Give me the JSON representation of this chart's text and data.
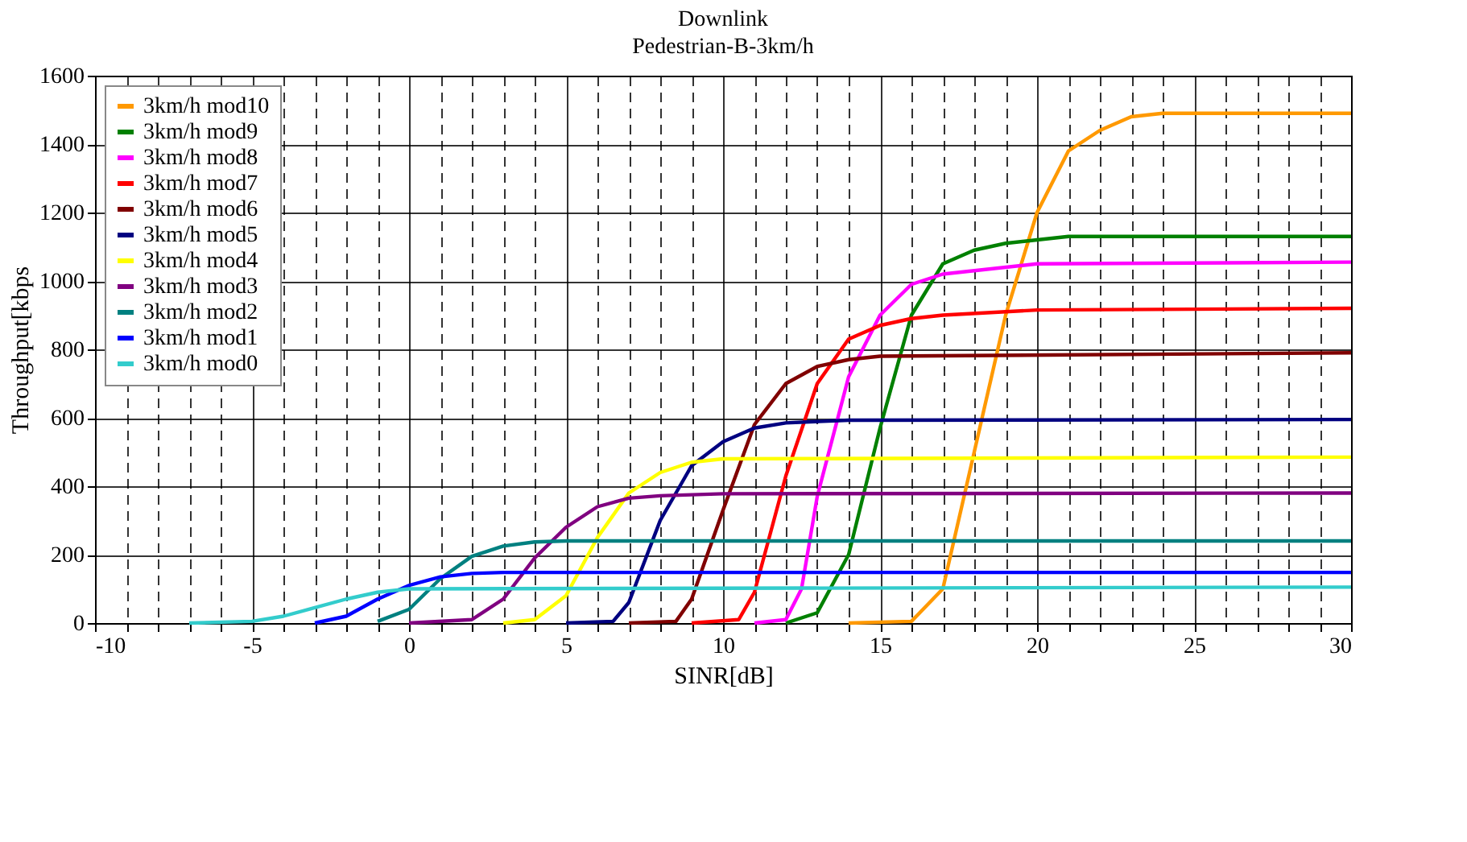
{
  "chart_data": {
    "type": "line",
    "title": "Downlink",
    "subtitle": "Pedestrian-B-3km/h",
    "xlabel": "SINR[dB]",
    "ylabel": "Throughput[kbps",
    "xlim": [
      -10,
      30
    ],
    "ylim": [
      0,
      1600
    ],
    "xticks": [
      -10,
      {
        "value": -9,
        "label": null
      },
      {
        "value": -8,
        "label": null
      },
      {
        "value": -7,
        "label": null
      },
      {
        "value": -6,
        "label": null
      },
      -5,
      {
        "value": -4,
        "label": null
      },
      {
        "value": -3,
        "label": null
      },
      {
        "value": -2,
        "label": null
      },
      {
        "value": -1,
        "label": null
      },
      0,
      {
        "value": 1,
        "label": null
      },
      {
        "value": 2,
        "label": null
      },
      {
        "value": 3,
        "label": null
      },
      {
        "value": 4,
        "label": null
      },
      5,
      {
        "value": 6,
        "label": null
      },
      {
        "value": 7,
        "label": null
      },
      {
        "value": 8,
        "label": null
      },
      {
        "value": 9,
        "label": null
      },
      10,
      {
        "value": 11,
        "label": null
      },
      {
        "value": 12,
        "label": null
      },
      {
        "value": 13,
        "label": null
      },
      {
        "value": 14,
        "label": null
      },
      15,
      {
        "value": 16,
        "label": null
      },
      {
        "value": 17,
        "label": null
      },
      {
        "value": 18,
        "label": null
      },
      {
        "value": 19,
        "label": null
      },
      20,
      {
        "value": 21,
        "label": null
      },
      {
        "value": 22,
        "label": null
      },
      {
        "value": 23,
        "label": null
      },
      {
        "value": 24,
        "label": null
      },
      25,
      {
        "value": 26,
        "label": null
      },
      {
        "value": 27,
        "label": null
      },
      {
        "value": 28,
        "label": null
      },
      {
        "value": 29,
        "label": null
      },
      30
    ],
    "yticks": [
      0,
      200,
      400,
      600,
      800,
      1000,
      1200,
      1400,
      1600
    ],
    "grid": true,
    "legend": "top left",
    "marker": "none",
    "line_style": "solid",
    "series": [
      {
        "name": "3km/h mod10",
        "color": "#ff9900",
        "x": [
          14,
          16,
          17,
          18,
          19,
          20,
          21,
          22,
          23,
          24,
          25,
          30
        ],
        "values": [
          0,
          5,
          100,
          500,
          900,
          1200,
          1380,
          1440,
          1480,
          1490,
          1490,
          1490
        ]
      },
      {
        "name": "3km/h mod9",
        "color": "#008000",
        "x": [
          12,
          13,
          14,
          15,
          16,
          17,
          18,
          19,
          20,
          21,
          30
        ],
        "values": [
          0,
          30,
          200,
          570,
          900,
          1050,
          1090,
          1110,
          1120,
          1130,
          1130
        ]
      },
      {
        "name": "3km/h mod8",
        "color": "#ff00ff",
        "x": [
          11,
          12,
          12.5,
          13,
          14,
          15,
          16,
          17,
          20,
          30
        ],
        "values": [
          0,
          10,
          100,
          370,
          720,
          900,
          990,
          1020,
          1050,
          1055
        ]
      },
      {
        "name": "3km/h mod7",
        "color": "#ff0000",
        "x": [
          9,
          10.5,
          11,
          12,
          13,
          14,
          15,
          16,
          17,
          20,
          30
        ],
        "values": [
          0,
          10,
          90,
          430,
          700,
          830,
          870,
          890,
          900,
          915,
          920
        ]
      },
      {
        "name": "3km/h mod6",
        "color": "#800000",
        "x": [
          7,
          8.5,
          9,
          10,
          11,
          12,
          13,
          14,
          15,
          30
        ],
        "values": [
          0,
          5,
          70,
          330,
          580,
          700,
          750,
          770,
          780,
          790
        ]
      },
      {
        "name": "3km/h mod5",
        "color": "#000080",
        "x": [
          5,
          6.5,
          7,
          8,
          9,
          10,
          11,
          12,
          14,
          30
        ],
        "values": [
          0,
          5,
          60,
          300,
          460,
          530,
          570,
          585,
          593,
          595
        ]
      },
      {
        "name": "3km/h mod4",
        "color": "#ffff00",
        "x": [
          3,
          4,
          5,
          6,
          7,
          8,
          9,
          10,
          30
        ],
        "values": [
          0,
          10,
          80,
          250,
          380,
          440,
          470,
          480,
          485
        ]
      },
      {
        "name": "3km/h mod3",
        "color": "#800080",
        "x": [
          0,
          2,
          3,
          4,
          5,
          6,
          7,
          8,
          10,
          30
        ],
        "values": [
          0,
          10,
          70,
          190,
          280,
          340,
          365,
          372,
          378,
          380
        ]
      },
      {
        "name": "3km/h mod2",
        "color": "#008080",
        "x": [
          -1,
          0,
          1,
          2,
          3,
          4,
          5,
          30
        ],
        "values": [
          5,
          40,
          130,
          195,
          225,
          237,
          240,
          240
        ]
      },
      {
        "name": "3km/h mod1",
        "color": "#0000ff",
        "x": [
          -3,
          -2,
          -1,
          0,
          1,
          2,
          3,
          30
        ],
        "values": [
          0,
          20,
          70,
          110,
          135,
          145,
          148,
          148
        ]
      },
      {
        "name": "3km/h mod0",
        "color": "#33cccc",
        "x": [
          -7,
          -5,
          -4,
          -3,
          -2,
          -1,
          0,
          30
        ],
        "values": [
          0,
          5,
          20,
          45,
          70,
          90,
          100,
          105
        ]
      }
    ]
  }
}
